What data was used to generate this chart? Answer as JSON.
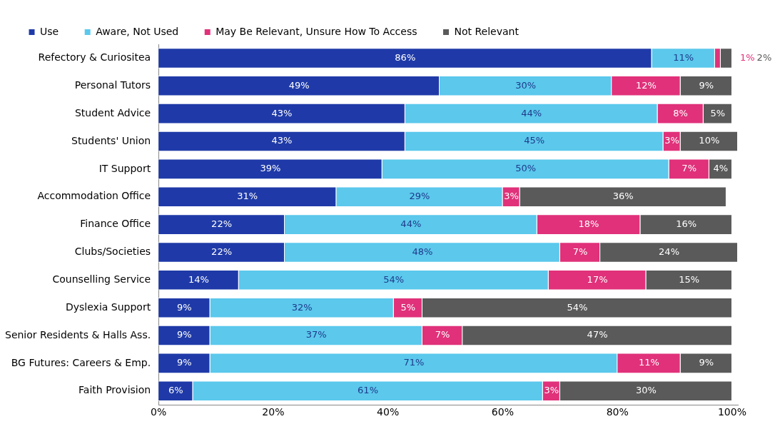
{
  "chart_data": {
    "type": "bar",
    "orientation": "horizontal",
    "stacked": true,
    "legend": "top left",
    "grid": false,
    "categories": [
      "Refectory & Curiositea",
      "Personal Tutors",
      "Student Advice",
      "Students' Union",
      "IT Support",
      "Accommodation Office",
      "Finance Office",
      "Clubs/Societies",
      "Counselling Service",
      "Dyslexia Support",
      "Senior Residents & Halls Ass.",
      "BG Futures: Careers & Emp.",
      "Faith Provision"
    ],
    "xlim": [
      0,
      101
    ],
    "xticks": [
      {
        "value": 0,
        "label": "0%"
      },
      {
        "value": 20,
        "label": "20%"
      },
      {
        "value": 40,
        "label": "40%"
      },
      {
        "value": 60,
        "label": "60%"
      },
      {
        "value": 80,
        "label": "80%"
      },
      {
        "value": 100,
        "label": "100%"
      }
    ],
    "series": [
      {
        "name": "Use",
        "color": "#1f3aa8",
        "values": [
          86,
          49,
          43,
          43,
          39,
          31,
          22,
          22,
          14,
          9,
          9,
          9,
          6
        ],
        "value_labels": [
          "86%",
          "49%",
          "43%",
          "43%",
          "39%",
          "31%",
          "22%",
          "22%",
          "14%",
          "9%",
          "9%",
          "9%",
          "6%"
        ]
      },
      {
        "name": "Aware, Not Used",
        "color": "#5bc8ec",
        "values": [
          11,
          30,
          44,
          45,
          50,
          29,
          44,
          48,
          54,
          32,
          37,
          71,
          61
        ],
        "value_labels": [
          "11%",
          "30%",
          "44%",
          "45%",
          "50%",
          "29%",
          "44%",
          "48%",
          "54%",
          "32%",
          "37%",
          "71%",
          "61%"
        ]
      },
      {
        "name": "May Be Relevant, Unsure How To Access",
        "color": "#e0317a",
        "values": [
          1,
          12,
          8,
          3,
          7,
          3,
          18,
          7,
          17,
          5,
          7,
          11,
          3
        ],
        "value_labels": [
          "1%",
          "12%",
          "8%",
          "3%",
          "7%",
          "3%",
          "18%",
          "7%",
          "17%",
          "5%",
          "7%",
          "11%",
          "3%"
        ]
      },
      {
        "name": "Not Relevant",
        "color": "#5a5a5a",
        "values": [
          2,
          9,
          5,
          10,
          4,
          36,
          16,
          24,
          15,
          54,
          47,
          9,
          30
        ],
        "value_labels": [
          "2%",
          "9%",
          "5%",
          "10%",
          "4%",
          "36%",
          "16%",
          "24%",
          "15%",
          "54%",
          "47%",
          "9%",
          "30%"
        ]
      }
    ]
  }
}
